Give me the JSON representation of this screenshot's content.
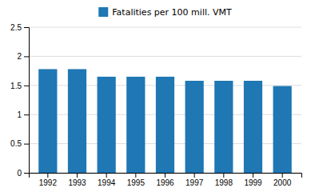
{
  "chart_data": {
    "type": "bar",
    "categories": [
      "1992",
      "1993",
      "1994",
      "1995",
      "1996",
      "1997",
      "1998",
      "1999",
      "2000"
    ],
    "series": [
      {
        "name": "Fatalities per 100 mill. VMT",
        "values": [
          1.78,
          1.78,
          1.65,
          1.65,
          1.65,
          1.58,
          1.58,
          1.58,
          1.49
        ]
      }
    ],
    "ylim": [
      0,
      2.5
    ],
    "yticks": [
      0,
      0.5,
      1,
      1.5,
      2,
      2.5
    ],
    "grid": true,
    "legend": "top"
  }
}
